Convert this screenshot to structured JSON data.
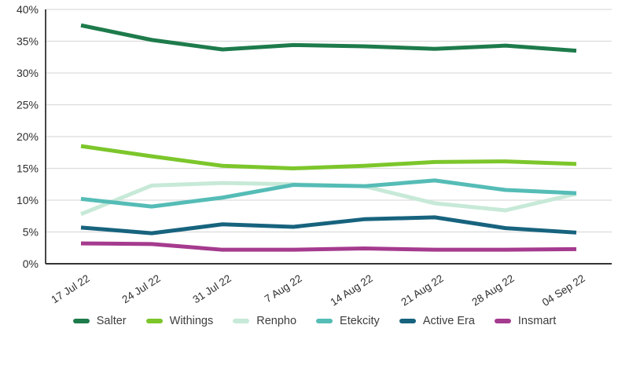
{
  "chart_data": {
    "type": "line",
    "title": "",
    "xlabel": "",
    "ylabel": "",
    "x_labels": [
      "17 Jul 22",
      "24 Jul 22",
      "31 Jul 22",
      "7 Aug 22",
      "14 Aug 22",
      "21 Aug 22",
      "28 Aug 22",
      "04 Sep 22"
    ],
    "series": [
      {
        "name": "Salter",
        "color": "#1e7b4b",
        "values": [
          37.5,
          35.2,
          33.7,
          34.4,
          34.2,
          33.8,
          34.3,
          33.5
        ]
      },
      {
        "name": "Withings",
        "color": "#7cc62b",
        "values": [
          18.5,
          16.9,
          15.4,
          15.0,
          15.4,
          16.0,
          16.1,
          15.7
        ]
      },
      {
        "name": "Renpho",
        "color": "#c7e9d8",
        "values": [
          7.8,
          12.3,
          12.7,
          12.5,
          12.2,
          9.5,
          8.4,
          11.0
        ]
      },
      {
        "name": "Etekcity",
        "color": "#55bcb6",
        "values": [
          10.2,
          9.0,
          10.4,
          12.4,
          12.2,
          13.1,
          11.6,
          11.1
        ]
      },
      {
        "name": "Active Era",
        "color": "#17637e",
        "values": [
          5.7,
          4.8,
          6.2,
          5.8,
          7.0,
          7.3,
          5.6,
          4.9
        ]
      },
      {
        "name": "Insmart",
        "color": "#a53b8e",
        "values": [
          3.2,
          3.1,
          2.2,
          2.2,
          2.4,
          2.2,
          2.2,
          2.3
        ]
      }
    ],
    "ylim": [
      0,
      40
    ],
    "y_tick_step": 5,
    "y_tick_labels": [
      "0%",
      "5%",
      "10%",
      "15%",
      "20%",
      "25%",
      "30%",
      "35%",
      "40%"
    ],
    "grid": true,
    "legend_position": "bottom"
  },
  "colors": {
    "background": "#ffffff",
    "gridline": "#dcdcdc",
    "axis": "#333333",
    "tick_text": "#2e2e2e",
    "legend_text": "#3d3d3d"
  }
}
